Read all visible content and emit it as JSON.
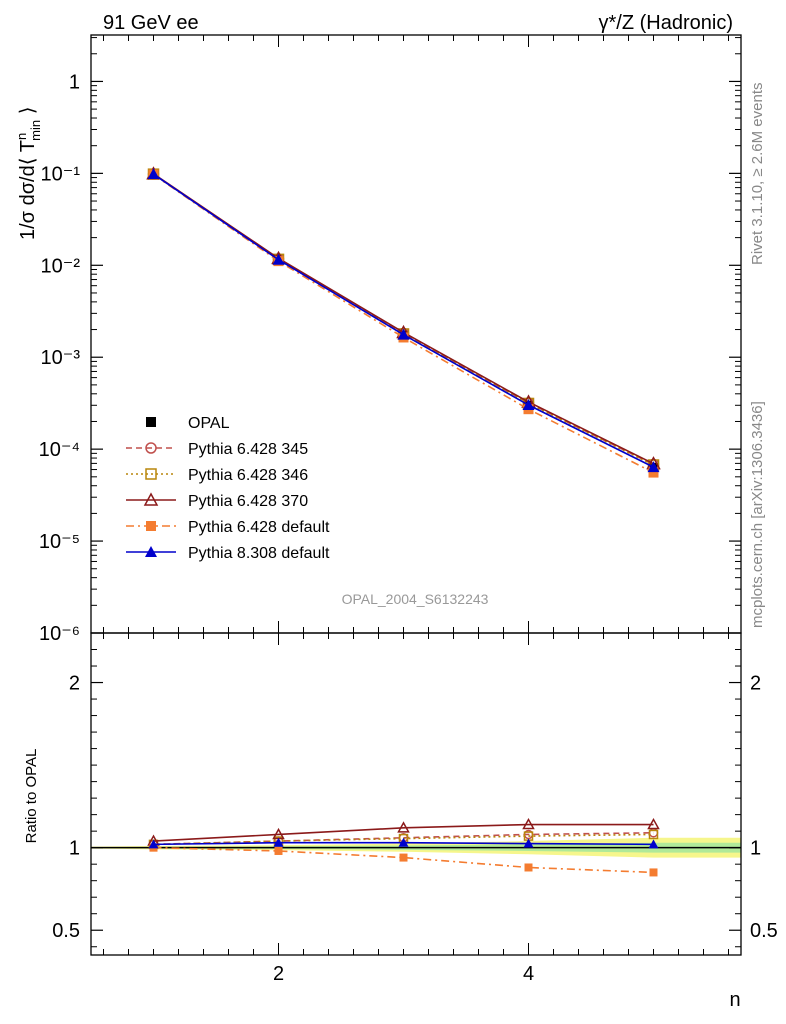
{
  "header": {
    "left_title": "91 GeV ee",
    "right_title": "γ*/Z (Hadronic)"
  },
  "side": {
    "rivet": "Rivet 3.1.10, ≥ 2.6M events",
    "mcplots": "mcplots.cern.ch [arXiv:1306.3436]"
  },
  "analysis_id": "OPAL_2004_S6132243",
  "chart_data": [
    {
      "type": "line",
      "panel": "main",
      "ylabel": "1/σ dσ/d⟨ T^n_min ⟩",
      "yscale": "log",
      "ylim": [
        1e-06,
        3.2
      ],
      "xlim": [
        0.5,
        5.7
      ],
      "ytick_labels": [
        "1",
        "10⁻¹",
        "10⁻²",
        "10⁻³",
        "10⁻⁴",
        "10⁻⁵",
        "10⁻⁶"
      ],
      "x": [
        1,
        2,
        3,
        4,
        5
      ],
      "series": [
        {
          "name": "OPAL",
          "color": "#000000",
          "marker": "square-filled",
          "line": "none",
          "values": [
            0.097,
            0.0113,
            0.00172,
            0.000296,
            6.25e-05
          ]
        },
        {
          "name": "Pythia 6.428 345",
          "color": "#c0504d",
          "marker": "circle-open",
          "line": "dashed",
          "values": [
            0.098,
            0.0117,
            0.00181,
            0.000318,
            6.8e-05
          ]
        },
        {
          "name": "Pythia 6.428 346",
          "color": "#b8860b",
          "marker": "square-open",
          "line": "dotted",
          "values": [
            0.098,
            0.0116,
            0.00179,
            0.000314,
            6.72e-05
          ]
        },
        {
          "name": "Pythia 6.428 370",
          "color": "#8b1a1a",
          "marker": "triangle-open",
          "line": "solid",
          "values": [
            0.099,
            0.0119,
            0.00186,
            0.000326,
            6.95e-05
          ]
        },
        {
          "name": "Pythia 6.428 default",
          "color": "#f47c30",
          "marker": "square-filled",
          "line": "dashdot",
          "values": [
            0.097,
            0.0111,
            0.00164,
            0.000272,
            5.56e-05
          ]
        },
        {
          "name": "Pythia 8.308 default",
          "color": "#0000cc",
          "marker": "triangle-filled",
          "line": "solid",
          "values": [
            0.098,
            0.0115,
            0.00176,
            0.000302,
            6.37e-05
          ]
        }
      ]
    },
    {
      "type": "line",
      "panel": "ratio",
      "xlabel": "n",
      "ylabel": "Ratio to OPAL",
      "ylim": [
        0.35,
        2.3
      ],
      "xlim": [
        0.5,
        5.7
      ],
      "ytick_labels": [
        "2",
        "1",
        "0.5"
      ],
      "xtick_labels": [
        "2",
        "4"
      ],
      "x": [
        1,
        2,
        3,
        4,
        5
      ],
      "series": [
        {
          "name": "Pythia 6.428 345",
          "values": [
            1.02,
            1.04,
            1.06,
            1.08,
            1.09
          ]
        },
        {
          "name": "Pythia 6.428 346",
          "values": [
            1.02,
            1.04,
            1.055,
            1.07,
            1.08
          ]
        },
        {
          "name": "Pythia 6.428 370",
          "values": [
            1.04,
            1.08,
            1.12,
            1.14,
            1.14
          ]
        },
        {
          "name": "Pythia 6.428 default",
          "values": [
            1.0,
            0.98,
            0.94,
            0.88,
            0.85
          ]
        },
        {
          "name": "Pythia 8.308 default",
          "values": [
            1.02,
            1.03,
            1.03,
            1.025,
            1.02
          ]
        }
      ],
      "uncertainty_band": {
        "x": [
          0.5,
          1,
          2,
          3,
          4,
          5,
          5.7
        ],
        "stat": [
          0.003,
          0.005,
          0.008,
          0.013,
          0.02,
          0.03,
          0.03
        ],
        "total": [
          0.006,
          0.01,
          0.015,
          0.025,
          0.04,
          0.06,
          0.06
        ]
      }
    }
  ]
}
